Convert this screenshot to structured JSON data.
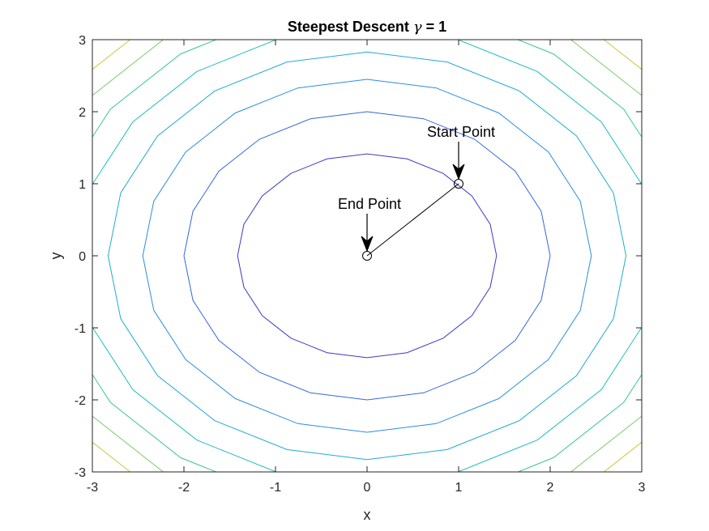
{
  "chart_data": {
    "type": "contour",
    "title_main": "Steepest Descent ",
    "title_symbol": "γ",
    "title_tail": " = 1",
    "xlabel": "x",
    "ylabel": "y",
    "xlim": [
      -3,
      3
    ],
    "ylim": [
      -3,
      3
    ],
    "x_ticks": [
      -3,
      -2,
      -1,
      0,
      1,
      2,
      3
    ],
    "y_ticks": [
      -3,
      -2,
      -1,
      0,
      1,
      2,
      3
    ],
    "x_tick_labels": [
      "-3",
      "-2",
      "-1",
      "0",
      "1",
      "2",
      "3"
    ],
    "y_tick_labels": [
      "-3",
      "-2",
      "-1",
      "0",
      "1",
      "2",
      "3"
    ],
    "function": "x^2 + y^2",
    "contour_levels": [
      2,
      4,
      6,
      8,
      10,
      12,
      14,
      16
    ],
    "colors": [
      "#3b3bc9",
      "#3567e0",
      "#2a8ee0",
      "#1fabd4",
      "#1fbcc0",
      "#3ac49a",
      "#7ec96a",
      "#d4c23a"
    ],
    "path": [
      {
        "x": 1,
        "y": 1
      },
      {
        "x": 0,
        "y": 0
      }
    ],
    "annotations": [
      {
        "label": "Start Point",
        "x": 1,
        "y": 1
      },
      {
        "label": "End Point",
        "x": 0,
        "y": 0
      }
    ],
    "grid": false,
    "legend": "none"
  }
}
